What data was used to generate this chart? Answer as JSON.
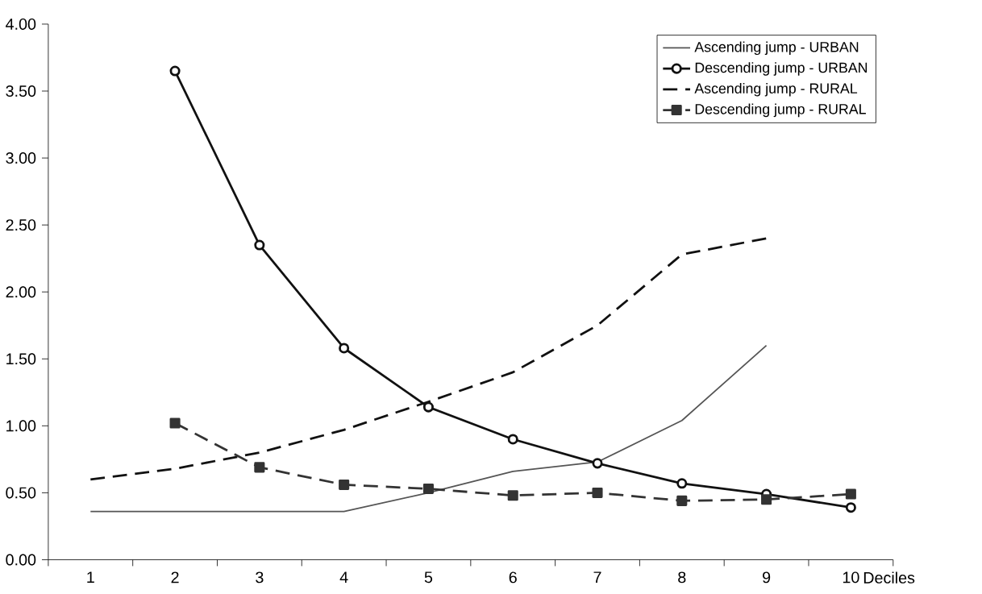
{
  "chart_data": {
    "type": "line",
    "xlabel": "Deciles",
    "categories": [
      "1",
      "2",
      "3",
      "4",
      "5",
      "6",
      "7",
      "8",
      "9",
      "10"
    ],
    "ylim": [
      0,
      4
    ],
    "yticks": [
      {
        "value": 0,
        "label": "0.00"
      },
      {
        "value": 0.5,
        "label": "0.50"
      },
      {
        "value": 1,
        "label": "1.00"
      },
      {
        "value": 1.5,
        "label": "1.50"
      },
      {
        "value": 2,
        "label": "2.00"
      },
      {
        "value": 2.5,
        "label": "2.50"
      },
      {
        "value": 3,
        "label": "3.00"
      },
      {
        "value": 3.5,
        "label": "3.50"
      },
      {
        "value": 4,
        "label": "4.00"
      }
    ],
    "grid": false,
    "legend": "top right",
    "series": [
      {
        "name": "Ascending jump - URBAN",
        "color": "#555555",
        "line_style": "solid",
        "marker": "none",
        "values": [
          0.36,
          0.36,
          0.36,
          0.36,
          0.5,
          0.66,
          0.73,
          1.04,
          1.6,
          null
        ]
      },
      {
        "name": "Descending jump - URBAN",
        "color": "#111111",
        "line_style": "solid",
        "marker": "circle",
        "values": [
          null,
          3.65,
          2.35,
          1.58,
          1.14,
          0.9,
          0.72,
          0.57,
          0.49,
          0.39
        ]
      },
      {
        "name": "Ascending jump - RURAL",
        "color": "#111111",
        "line_style": "dashed",
        "marker": "none",
        "values": [
          0.6,
          0.68,
          0.8,
          0.97,
          1.18,
          1.4,
          1.75,
          2.28,
          2.4,
          null
        ]
      },
      {
        "name": "Descending jump - RURAL",
        "color": "#333333",
        "line_style": "dashed",
        "marker": "square",
        "values": [
          null,
          1.02,
          0.69,
          0.56,
          0.53,
          0.48,
          0.5,
          0.44,
          0.45,
          0.49
        ]
      }
    ]
  }
}
